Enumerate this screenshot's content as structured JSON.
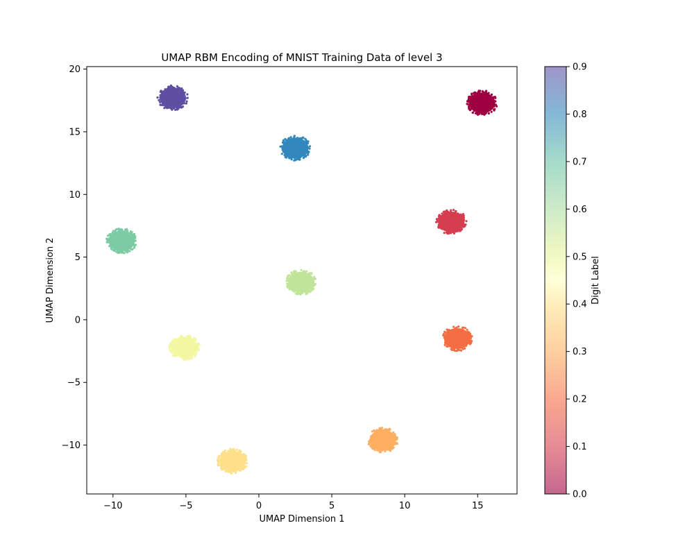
{
  "chart_data": {
    "type": "scatter",
    "title": "UMAP RBM Encoding of MNIST Training Data of level 3",
    "xlabel": "UMAP Dimension 1",
    "ylabel": "UMAP Dimension 2",
    "xlim": [
      -11.8,
      17.7
    ],
    "ylim": [
      -13.9,
      20.2
    ],
    "xticks": [
      -10,
      -5,
      0,
      5,
      10,
      15
    ],
    "yticks": [
      -10,
      -5,
      0,
      5,
      10,
      15,
      20
    ],
    "grid": false,
    "colorbar": {
      "label": "Digit Label",
      "range": [
        0.0,
        0.9
      ],
      "ticks": [
        0.0,
        0.1,
        0.2,
        0.3,
        0.4,
        0.5,
        0.6,
        0.7,
        0.8,
        0.9
      ],
      "colormap": "Spectral",
      "alpha": 0.6
    },
    "clusters": [
      {
        "label_value": 0.0,
        "x": 15.3,
        "y": 17.3,
        "color": "#9e0142"
      },
      {
        "label_value": 0.1,
        "x": 13.2,
        "y": 7.8,
        "color": "#d53e4f"
      },
      {
        "label_value": 0.2,
        "x": 13.6,
        "y": -1.5,
        "color": "#f46d43"
      },
      {
        "label_value": 0.3,
        "x": 8.5,
        "y": -9.6,
        "color": "#fdae61"
      },
      {
        "label_value": 0.4,
        "x": -1.8,
        "y": -11.3,
        "color": "#fee08b"
      },
      {
        "label_value": 0.5,
        "x": -5.1,
        "y": -2.2,
        "color": "#f2f7a1"
      },
      {
        "label_value": 0.6,
        "x": 2.9,
        "y": 3.0,
        "color": "#c0e59a"
      },
      {
        "label_value": 0.7,
        "x": -9.4,
        "y": 6.3,
        "color": "#7ccba4"
      },
      {
        "label_value": 0.8,
        "x": 2.5,
        "y": 13.7,
        "color": "#3288bd"
      },
      {
        "label_value": 0.9,
        "x": -5.9,
        "y": 17.7,
        "color": "#5e4fa2"
      }
    ]
  }
}
